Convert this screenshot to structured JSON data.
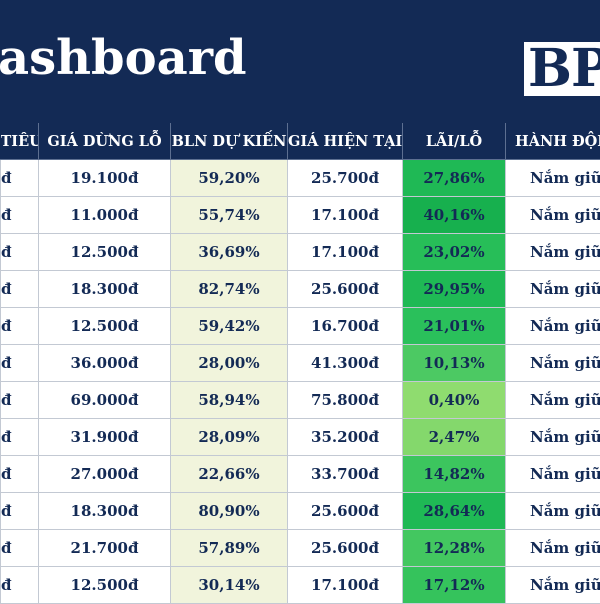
{
  "header": {
    "title": "ashboard",
    "logo_text": "BP"
  },
  "table": {
    "columns": [
      "TIÊU",
      "GIÁ DỪNG LỖ",
      "BLN DỰ KIẾN",
      "GIÁ HIỆN TẠI",
      "LÃI/LỖ",
      "HÀNH ĐỘNG"
    ],
    "rows": [
      {
        "target": "đ",
        "stop_loss": "19.100đ",
        "expected": "59,20%",
        "current": "25.700đ",
        "pnl": "27,86%",
        "pnl_color": "#1fb955",
        "action": "Nắm giữ"
      },
      {
        "target": "đ",
        "stop_loss": "11.000đ",
        "expected": "55,74%",
        "current": "17.100đ",
        "pnl": "40,16%",
        "pnl_color": "#17b04e",
        "action": "Nắm giữ"
      },
      {
        "target": "đ",
        "stop_loss": "12.500đ",
        "expected": "36,69%",
        "current": "17.100đ",
        "pnl": "23,02%",
        "pnl_color": "#27be58",
        "action": "Nắm giữ"
      },
      {
        "target": "đ",
        "stop_loss": "18.300đ",
        "expected": "82,74%",
        "current": "25.600đ",
        "pnl": "29,95%",
        "pnl_color": "#1fb955",
        "action": "Nắm giữ"
      },
      {
        "target": "đ",
        "stop_loss": "12.500đ",
        "expected": "59,42%",
        "current": "16.700đ",
        "pnl": "21,01%",
        "pnl_color": "#2ac05b",
        "action": "Nắm giữ"
      },
      {
        "target": "đ",
        "stop_loss": "36.000đ",
        "expected": "28,00%",
        "current": "41.300đ",
        "pnl": "10,13%",
        "pnl_color": "#4cc963",
        "action": "Nắm giữ"
      },
      {
        "target": "đ",
        "stop_loss": "69.000đ",
        "expected": "58,94%",
        "current": "75.800đ",
        "pnl": "0,40%",
        "pnl_color": "#8fdc6f",
        "action": "Nắm giữ"
      },
      {
        "target": "đ",
        "stop_loss": "31.900đ",
        "expected": "28,09%",
        "current": "35.200đ",
        "pnl": "2,47%",
        "pnl_color": "#84d86c",
        "action": "Nắm giữ"
      },
      {
        "target": "đ",
        "stop_loss": "27.000đ",
        "expected": "22,66%",
        "current": "33.700đ",
        "pnl": "14,82%",
        "pnl_color": "#3cc55e",
        "action": "Nắm giữ"
      },
      {
        "target": "đ",
        "stop_loss": "18.300đ",
        "expected": "80,90%",
        "current": "25.600đ",
        "pnl": "28,64%",
        "pnl_color": "#1fb955",
        "action": "Nắm giữ"
      },
      {
        "target": "đ",
        "stop_loss": "21.700đ",
        "expected": "57,89%",
        "current": "25.600đ",
        "pnl": "12,28%",
        "pnl_color": "#43c760",
        "action": "Nắm giữ"
      },
      {
        "target": "đ",
        "stop_loss": "12.500đ",
        "expected": "30,14%",
        "current": "17.100đ",
        "pnl": "17,12%",
        "pnl_color": "#35c35c",
        "action": "Nắm giữ"
      }
    ]
  }
}
